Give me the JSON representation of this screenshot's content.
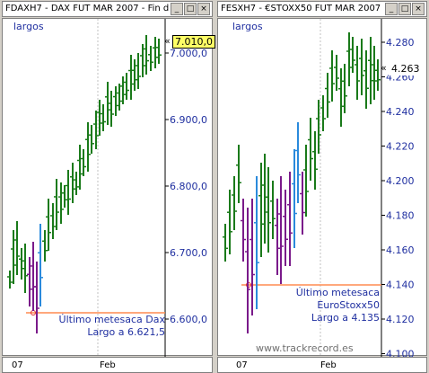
{
  "left": {
    "title": "FDAXH7 - DAX FUT MAR 2007 - Fin d",
    "tag": "largos",
    "current_price": "7.010,0",
    "price_marker": "«",
    "y_ticks": [
      "7.000,0",
      "6.900,0",
      "6.800,0",
      "6.700,0",
      "6.600,0"
    ],
    "x_labels": [
      "07",
      "Feb"
    ],
    "annotation": [
      "Último metesaca Dax",
      "Largo a 6.621,5"
    ]
  },
  "right": {
    "title": "FESXH7 - €STOXX50 FUT MAR 2007",
    "tag": "largos",
    "current_price": "4.263",
    "price_marker": "«",
    "y_ticks": [
      "4.280",
      "4.260",
      "4.240",
      "4.220",
      "4.200",
      "4.180",
      "4.160",
      "4.140",
      "4.120",
      "4.100"
    ],
    "x_labels": [
      "07",
      "Feb"
    ],
    "annotation": [
      "Último metesaca",
      "EuroStoxx50",
      "Largo a 4.135"
    ],
    "watermark": "www.trackrecord.es"
  },
  "window_buttons": [
    "_",
    "□",
    "×"
  ],
  "colors": {
    "up_bar": "#1a7a1a",
    "down_bar": "#7a1a8a",
    "blue_bar": "#2a8adc",
    "hline": "#ff8c50",
    "text": "#1f2fa0"
  }
}
